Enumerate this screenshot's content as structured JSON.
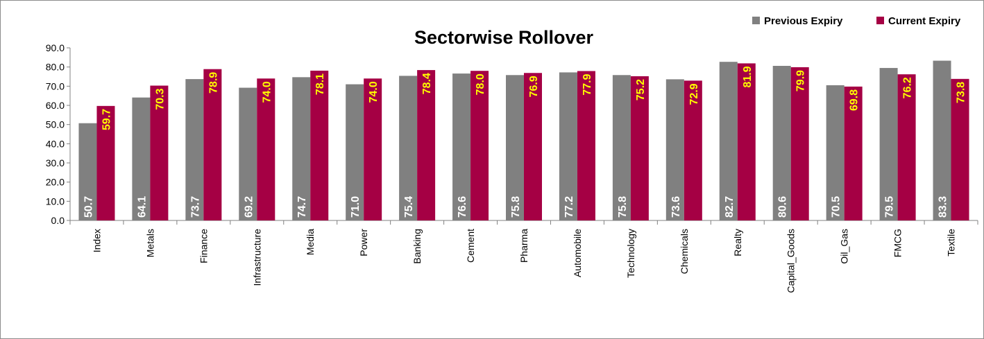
{
  "chart_data": {
    "type": "bar",
    "title": "Sectorwise Rollover",
    "xlabel": "",
    "ylabel": "",
    "ylim": [
      0,
      90
    ],
    "yticks": [
      "0.0",
      "10.0",
      "20.0",
      "30.0",
      "40.0",
      "50.0",
      "60.0",
      "70.0",
      "80.0",
      "90.0"
    ],
    "grid": false,
    "legend_position": "top-right",
    "categories": [
      "Index",
      "Metals",
      "Finance",
      "Infrastructure",
      "Media",
      "Power",
      "Banking",
      "Cement",
      "Pharma",
      "Automobile",
      "Technology",
      "Chemicals",
      "Realty",
      "Capital_Goods",
      "Oil_Gas",
      "FMCG",
      "Textile"
    ],
    "series": [
      {
        "name": "Previous Expiry",
        "color": "#808080",
        "label_color": "#ffffff",
        "values": [
          50.7,
          64.1,
          73.7,
          69.2,
          74.7,
          71.0,
          75.4,
          76.6,
          75.8,
          77.2,
          75.8,
          73.6,
          82.7,
          80.6,
          70.5,
          79.5,
          83.3
        ],
        "labels": [
          "50.7",
          "64.1",
          "73.7",
          "69.2",
          "74.7",
          "71.0",
          "75.4",
          "76.6",
          "75.8",
          "77.2",
          "75.8",
          "73.6",
          "82.7",
          "80.6",
          "70.5",
          "79.5",
          "83.3"
        ]
      },
      {
        "name": "Current Expiry",
        "color": "#a50044",
        "label_color": "#ffff00",
        "values": [
          59.7,
          70.3,
          78.9,
          74.0,
          78.1,
          74.0,
          78.4,
          78.0,
          76.9,
          77.9,
          75.2,
          72.9,
          81.9,
          79.9,
          69.8,
          76.2,
          73.8
        ],
        "labels": [
          "59.7",
          "70.3",
          "78.9",
          "74.0",
          "78.1",
          "74.0",
          "78.4",
          "78.0",
          "76.9",
          "77.9",
          "75.2",
          "72.9",
          "81.9",
          "79.9",
          "69.8",
          "76.2",
          "73.8"
        ]
      }
    ]
  }
}
